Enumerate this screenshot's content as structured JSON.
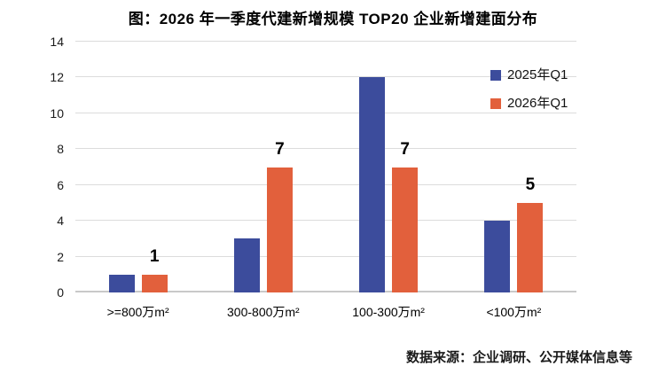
{
  "colors": {
    "series_2025": "#3C4C9C",
    "series_2026": "#E2603C",
    "gridline": "#DCDCDC",
    "axis_baseline": "#C9C9C9",
    "text": "#000000"
  },
  "chart_data": {
    "type": "bar",
    "title": "图：2026 年一季度代建新增规模 TOP20 企业新增建面分布",
    "source_note": "数据来源：企业调研、公开媒体信息等",
    "categories": [
      ">=800万m²",
      "300-800万m²",
      "100-300万m²",
      "<100万m²"
    ],
    "series": [
      {
        "name": "2025年Q1",
        "color": "#3C4C9C",
        "values": [
          1,
          3,
          12,
          4
        ],
        "data_labels": false
      },
      {
        "name": "2026年Q1",
        "color": "#E2603C",
        "values": [
          1,
          7,
          7,
          5
        ],
        "data_labels": true
      }
    ],
    "xlabel": "",
    "ylabel": "",
    "ylim": [
      0,
      14
    ],
    "ytick_step": 2,
    "yticks": [
      0,
      2,
      4,
      6,
      8,
      10,
      12,
      14
    ],
    "grid": true,
    "legend_position": "top-right"
  }
}
